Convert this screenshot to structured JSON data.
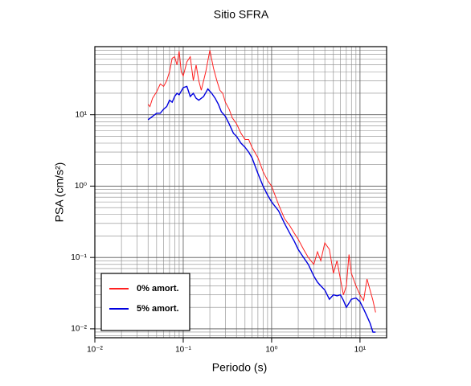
{
  "chart_data": {
    "type": "line",
    "title": "Sitio SFRA",
    "xlabel": "Periodo (s)",
    "ylabel": "PSA (cm/s²)",
    "xscale": "log",
    "yscale": "log",
    "grid": true,
    "legend": "lower left",
    "xlim": [
      0.01,
      20
    ],
    "ylim": [
      0.0075,
      90
    ],
    "xticks": [
      {
        "value": 0.01,
        "label": "10⁻²"
      },
      {
        "value": 0.1,
        "label": "10⁻¹"
      },
      {
        "value": 1,
        "label": "10⁰"
      },
      {
        "value": 10,
        "label": "10¹"
      }
    ],
    "yticks": [
      {
        "value": 0.01,
        "label": "10⁻²"
      },
      {
        "value": 0.1,
        "label": "10⁻¹"
      },
      {
        "value": 1,
        "label": "10⁰"
      },
      {
        "value": 10,
        "label": "10¹"
      }
    ],
    "xminorticks": [
      0.02,
      0.03,
      0.04,
      0.05,
      0.06,
      0.07,
      0.08,
      0.09,
      0.2,
      0.3,
      0.4,
      0.5,
      0.6,
      0.7,
      0.8,
      0.9,
      2,
      3,
      4,
      5,
      6,
      7,
      8,
      9
    ],
    "yminorticks": [
      0.008,
      0.009,
      0.02,
      0.03,
      0.04,
      0.05,
      0.06,
      0.07,
      0.08,
      0.09,
      0.2,
      0.3,
      0.4,
      0.5,
      0.6,
      0.7,
      0.8,
      0.9,
      2,
      3,
      4,
      5,
      6,
      7,
      8,
      9,
      20,
      30,
      40,
      50,
      60,
      70,
      80,
      90
    ],
    "series": [
      {
        "name": "0% amort.",
        "color": "#ff2020",
        "x": [
          0.04,
          0.042,
          0.045,
          0.05,
          0.055,
          0.06,
          0.065,
          0.07,
          0.075,
          0.08,
          0.085,
          0.09,
          0.095,
          0.1,
          0.11,
          0.12,
          0.13,
          0.14,
          0.15,
          0.16,
          0.18,
          0.2,
          0.22,
          0.24,
          0.26,
          0.28,
          0.3,
          0.33,
          0.36,
          0.4,
          0.45,
          0.5,
          0.55,
          0.6,
          0.7,
          0.8,
          0.9,
          1.0,
          1.2,
          1.4,
          1.6,
          1.8,
          2.0,
          2.3,
          2.6,
          3.0,
          3.3,
          3.6,
          4.0,
          4.5,
          5.0,
          5.5,
          6.0,
          6.5,
          7.0,
          7.5,
          8.0,
          9.0,
          10,
          11,
          12,
          13,
          14,
          15
        ],
        "values": [
          14,
          13,
          17,
          21,
          27,
          25,
          30,
          40,
          62,
          65,
          50,
          78,
          40,
          35,
          55,
          65,
          30,
          50,
          30,
          22,
          40,
          80,
          45,
          30,
          22,
          20,
          15,
          12,
          9,
          7.5,
          5.5,
          4.5,
          4.5,
          3.5,
          2.5,
          1.6,
          1.2,
          1.0,
          0.55,
          0.35,
          0.28,
          0.22,
          0.18,
          0.13,
          0.1,
          0.08,
          0.12,
          0.09,
          0.16,
          0.13,
          0.06,
          0.09,
          0.05,
          0.03,
          0.04,
          0.11,
          0.06,
          0.04,
          0.03,
          0.025,
          0.05,
          0.035,
          0.025,
          0.017
        ]
      },
      {
        "name": "5% amort.",
        "color": "#0000e0",
        "x": [
          0.04,
          0.045,
          0.05,
          0.055,
          0.06,
          0.065,
          0.07,
          0.075,
          0.08,
          0.085,
          0.09,
          0.1,
          0.11,
          0.12,
          0.13,
          0.14,
          0.15,
          0.17,
          0.19,
          0.21,
          0.23,
          0.25,
          0.27,
          0.3,
          0.33,
          0.37,
          0.4,
          0.45,
          0.5,
          0.55,
          0.6,
          0.7,
          0.8,
          0.9,
          1.0,
          1.2,
          1.4,
          1.6,
          1.8,
          2.0,
          2.3,
          2.6,
          3.0,
          3.3,
          3.6,
          4.0,
          4.5,
          5.0,
          5.5,
          6.0,
          6.5,
          7.0,
          8.0,
          9.0,
          10,
          11,
          12,
          13,
          14,
          15
        ],
        "values": [
          8.5,
          9.5,
          10.5,
          10.5,
          12,
          13,
          16,
          15,
          18,
          20,
          19,
          24,
          25,
          18,
          20,
          17,
          16,
          18,
          23,
          20,
          17,
          14,
          11,
          9.5,
          7.5,
          5.5,
          5,
          4,
          3.5,
          3,
          2.5,
          1.5,
          1.0,
          0.75,
          0.6,
          0.45,
          0.3,
          0.22,
          0.17,
          0.13,
          0.1,
          0.08,
          0.055,
          0.045,
          0.04,
          0.035,
          0.026,
          0.03,
          0.029,
          0.03,
          0.025,
          0.02,
          0.026,
          0.027,
          0.024,
          0.019,
          0.015,
          0.012,
          0.009,
          0.009
        ]
      }
    ]
  }
}
